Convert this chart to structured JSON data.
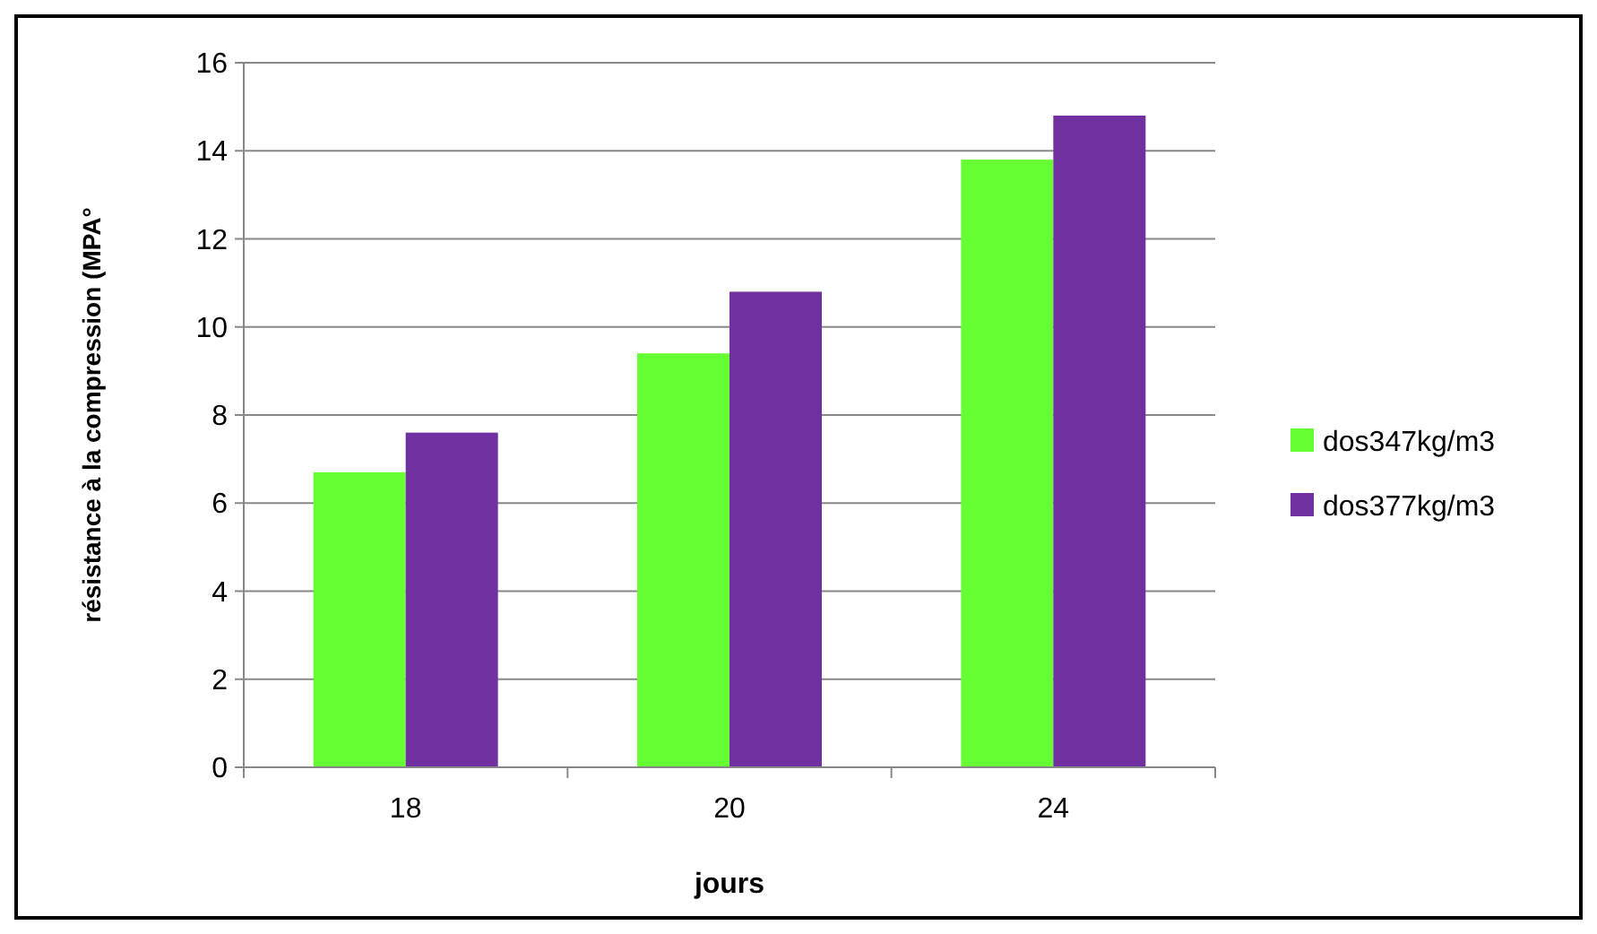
{
  "chart_data": {
    "type": "bar",
    "xlabel": "jours",
    "ylabel": "résistance à la compression  (MPA°",
    "categories": [
      "18",
      "20",
      "24"
    ],
    "series": [
      {
        "name": "dos347kg/m3",
        "color": "#66ff33",
        "values": [
          6.7,
          9.4,
          13.8
        ]
      },
      {
        "name": "dos377kg/m3",
        "color": "#7030a0",
        "values": [
          7.6,
          10.8,
          14.8
        ]
      }
    ],
    "ylim": [
      0,
      16
    ],
    "yticks": [
      0,
      2,
      4,
      6,
      8,
      10,
      12,
      14,
      16
    ],
    "grid": "y",
    "legend": "right"
  }
}
